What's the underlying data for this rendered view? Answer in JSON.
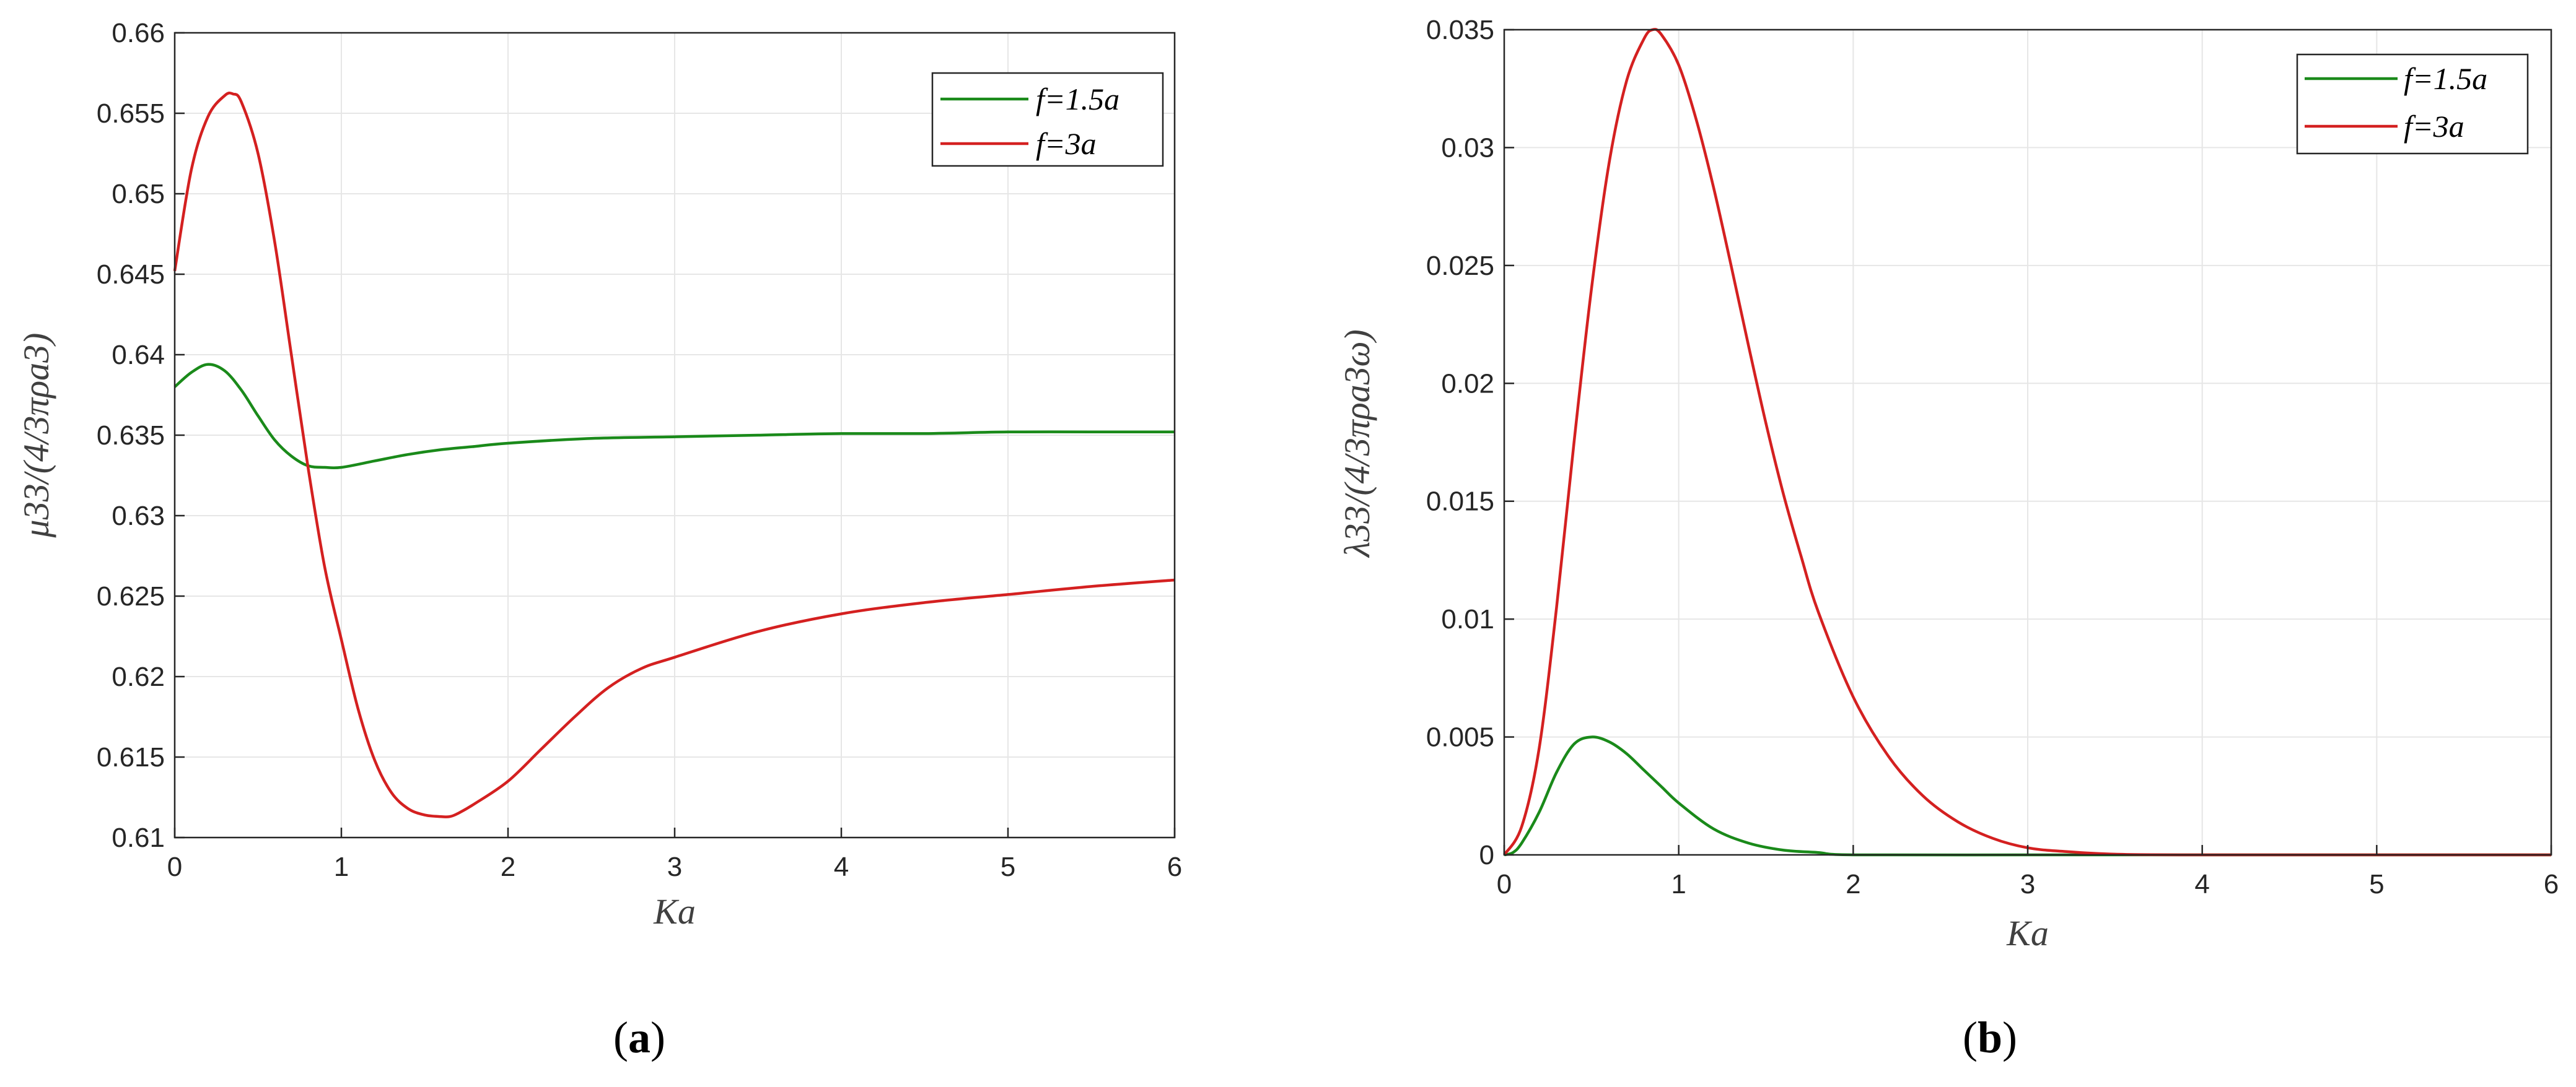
{
  "chart_data": [
    {
      "type": "line",
      "panel_label": "a",
      "xlabel": "Ka",
      "ylabel": "μ33/(4/3πρa3)",
      "xlim": [
        0,
        6
      ],
      "ylim": [
        0.61,
        0.66
      ],
      "xticks": [
        "0",
        "1",
        "2",
        "3",
        "4",
        "5",
        "6"
      ],
      "yticks": [
        "0.61",
        "0.615",
        "0.62",
        "0.625",
        "0.63",
        "0.635",
        "0.64",
        "0.645",
        "0.65",
        "0.655",
        "0.66"
      ],
      "grid": true,
      "legend_position": "top-right",
      "series": [
        {
          "name": "f=1.5a",
          "color": "#1a8a1a",
          "x": [
            0,
            0.1,
            0.2,
            0.3,
            0.4,
            0.5,
            0.6,
            0.7,
            0.8,
            0.9,
            1.0,
            1.2,
            1.4,
            1.6,
            1.8,
            2.0,
            2.5,
            3.0,
            3.5,
            4.0,
            4.5,
            5.0,
            5.5,
            6.0
          ],
          "y": [
            0.638,
            0.6389,
            0.6394,
            0.639,
            0.6378,
            0.6362,
            0.6347,
            0.6337,
            0.6331,
            0.633,
            0.633,
            0.6334,
            0.6338,
            0.6341,
            0.6343,
            0.6345,
            0.6348,
            0.6349,
            0.635,
            0.6351,
            0.6351,
            0.6352,
            0.6352,
            0.6352
          ]
        },
        {
          "name": "f=3a",
          "color": "#d42020",
          "x": [
            0,
            0.1,
            0.2,
            0.3,
            0.35,
            0.4,
            0.5,
            0.6,
            0.7,
            0.8,
            0.9,
            1.0,
            1.1,
            1.2,
            1.3,
            1.4,
            1.5,
            1.6,
            1.65,
            1.7,
            1.8,
            2.0,
            2.2,
            2.4,
            2.6,
            2.8,
            3.0,
            3.5,
            4.0,
            4.5,
            5.0,
            5.5,
            6.0
          ],
          "y": [
            0.6452,
            0.6515,
            0.6548,
            0.6561,
            0.6562,
            0.6557,
            0.6525,
            0.647,
            0.64,
            0.633,
            0.6268,
            0.6223,
            0.618,
            0.6148,
            0.6128,
            0.6118,
            0.6114,
            0.6113,
            0.6113,
            0.6115,
            0.6121,
            0.6135,
            0.6155,
            0.6175,
            0.6193,
            0.6205,
            0.6212,
            0.6228,
            0.6239,
            0.6246,
            0.6251,
            0.6256,
            0.626
          ]
        }
      ]
    },
    {
      "type": "line",
      "panel_label": "b",
      "xlabel": "Ka",
      "ylabel": "λ33/(4/3πρa3ω)",
      "xlim": [
        0,
        6
      ],
      "ylim": [
        0,
        0.035
      ],
      "xticks": [
        "0",
        "1",
        "2",
        "3",
        "4",
        "5",
        "6"
      ],
      "yticks": [
        "0",
        "0.005",
        "0.01",
        "0.015",
        "0.02",
        "0.025",
        "0.03",
        "0.035"
      ],
      "grid": true,
      "legend_position": "top-right",
      "series": [
        {
          "name": "f=1.5a",
          "color": "#1a8a1a",
          "x": [
            0,
            0.05,
            0.1,
            0.2,
            0.3,
            0.4,
            0.5,
            0.6,
            0.7,
            0.8,
            0.9,
            1.0,
            1.2,
            1.4,
            1.6,
            1.8,
            2.0,
            3.0,
            4.0,
            5.0,
            6.0
          ],
          "y": [
            0,
            0.0001,
            0.0005,
            0.0018,
            0.0035,
            0.0047,
            0.005,
            0.0048,
            0.0043,
            0.0036,
            0.0029,
            0.0022,
            0.0011,
            0.0005,
            0.0002,
            0.0001,
            0,
            0,
            0,
            0,
            0
          ]
        },
        {
          "name": "f=3a",
          "color": "#d42020",
          "x": [
            0,
            0.1,
            0.2,
            0.3,
            0.4,
            0.5,
            0.6,
            0.7,
            0.8,
            0.85,
            0.9,
            1.0,
            1.1,
            1.2,
            1.3,
            1.4,
            1.5,
            1.6,
            1.7,
            1.8,
            2.0,
            2.2,
            2.4,
            2.6,
            2.8,
            3.0,
            3.2,
            3.5,
            4.0,
            5.0,
            6.0
          ],
          "y": [
            0,
            0.0012,
            0.0045,
            0.0105,
            0.0175,
            0.024,
            0.0293,
            0.0328,
            0.0346,
            0.035,
            0.0348,
            0.0335,
            0.0312,
            0.0283,
            0.025,
            0.0216,
            0.0183,
            0.0153,
            0.0127,
            0.0103,
            0.0067,
            0.0042,
            0.0025,
            0.0014,
            0.0007,
            0.0003,
            0.00015,
            3e-05,
            0,
            0,
            0
          ]
        }
      ]
    }
  ]
}
